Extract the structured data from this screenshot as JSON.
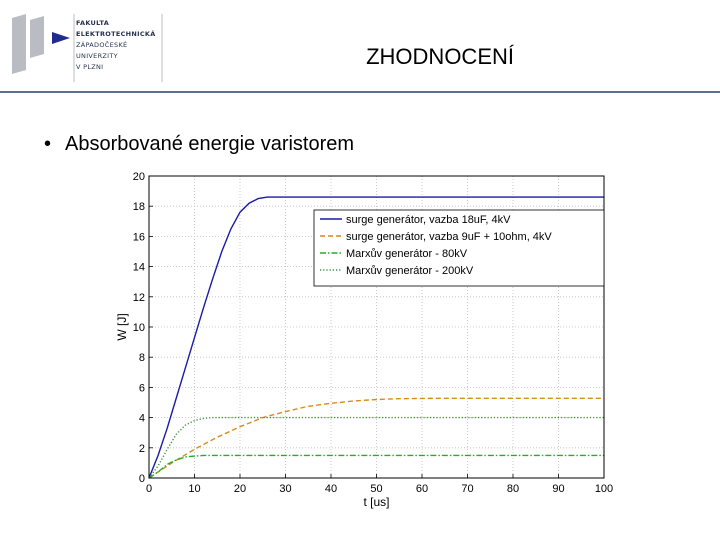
{
  "header": {
    "logo_lines": [
      "FAKULTA",
      "ELEKTROTECHNICKÁ",
      "ZÁPADOČESKÉ",
      "UNIVERZITY",
      "V PLZNI"
    ],
    "slide_title": "ZHODNOCENÍ"
  },
  "bullet": {
    "symbol": "•",
    "text": "Absorbované energie varistorem"
  },
  "colors": {
    "header_rule": "#5b6f95",
    "logo_grey": "#b9bcc2",
    "logo_blue": "#1f2b8f"
  },
  "chart_data": {
    "type": "line",
    "xlabel": "t [us]",
    "ylabel": "W [J]",
    "xlim": [
      0,
      100
    ],
    "ylim": [
      0,
      20
    ],
    "xticks": [
      0,
      10,
      20,
      30,
      40,
      50,
      60,
      70,
      80,
      90,
      100
    ],
    "yticks": [
      0,
      2,
      4,
      6,
      8,
      10,
      12,
      14,
      16,
      18,
      20
    ],
    "grid": true,
    "legend_position": "top-right",
    "series": [
      {
        "name": "surge generátor, vazba 18uF, 4kV",
        "color": "#1a1aa6",
        "style": "solid",
        "x": [
          0,
          2,
          4,
          6,
          8,
          10,
          12,
          14,
          16,
          18,
          20,
          22,
          24,
          26,
          30,
          40,
          50,
          60,
          70,
          80,
          90,
          100
        ],
        "y": [
          0,
          1.5,
          3.3,
          5.3,
          7.3,
          9.3,
          11.3,
          13.2,
          15.0,
          16.5,
          17.6,
          18.2,
          18.5,
          18.6,
          18.6,
          18.6,
          18.6,
          18.6,
          18.6,
          18.6,
          18.6,
          18.6
        ]
      },
      {
        "name": "surge generátor, vazba 9uF + 10ohm, 4kV",
        "color": "#d98a1a",
        "style": "dashed",
        "x": [
          0,
          2,
          5,
          10,
          15,
          20,
          25,
          30,
          35,
          40,
          45,
          50,
          55,
          60,
          70,
          80,
          90,
          100
        ],
        "y": [
          0,
          0.4,
          1.0,
          1.9,
          2.7,
          3.4,
          4.0,
          4.4,
          4.75,
          4.95,
          5.1,
          5.2,
          5.25,
          5.27,
          5.28,
          5.28,
          5.28,
          5.28
        ]
      },
      {
        "name": "Marxův generátor - 80kV",
        "color": "#22b022",
        "style": "dashdot",
        "x": [
          0,
          2,
          4,
          6,
          8,
          10,
          12,
          15,
          20,
          30,
          40,
          50,
          60,
          70,
          80,
          90,
          100
        ],
        "y": [
          0,
          0.4,
          0.9,
          1.2,
          1.4,
          1.45,
          1.5,
          1.5,
          1.5,
          1.5,
          1.5,
          1.5,
          1.5,
          1.5,
          1.5,
          1.5,
          1.5
        ]
      },
      {
        "name": "Marxův generátor - 200kV",
        "color": "#3a8f3a",
        "style": "dotted",
        "x": [
          0,
          2,
          4,
          6,
          8,
          10,
          12,
          14,
          16,
          20,
          30,
          40,
          50,
          60,
          70,
          80,
          90,
          100
        ],
        "y": [
          0,
          0.8,
          1.9,
          2.9,
          3.5,
          3.8,
          3.95,
          4.0,
          4.0,
          4.0,
          4.0,
          4.0,
          4.0,
          4.0,
          4.0,
          4.0,
          4.0,
          4.0
        ]
      }
    ]
  }
}
